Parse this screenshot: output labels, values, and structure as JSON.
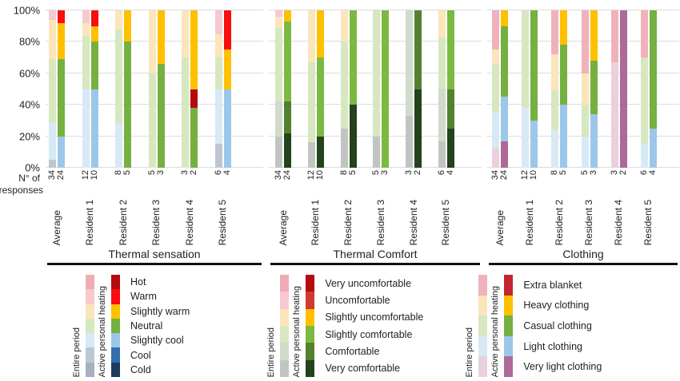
{
  "y_axis": {
    "ticks": [
      "100%",
      "80%",
      "60%",
      "40%",
      "20%",
      "0%"
    ],
    "label_line1": "N° of",
    "label_line2": "responses"
  },
  "legend_header": {
    "entire": "Entire  period",
    "active": "Active personal heating"
  },
  "chart_data": [
    {
      "type": "bar",
      "stacked": true,
      "unit": "%",
      "ylim": [
        0,
        100
      ],
      "title": "Thermal sensation",
      "categories": [
        "Average",
        "Resident 1",
        "Resident 2",
        "Resident 3",
        "Resident 4",
        "Resident 5"
      ],
      "legend": [
        "Hot",
        "Warm",
        "Slightly warm",
        "Neutral",
        "Slightly cool",
        "Cool",
        "Cold"
      ],
      "colors": {
        "entire": {
          "Hot": "#F0ACB4",
          "Warm": "#F6C9CE",
          "Slightly warm": "#FBE5BB",
          "Neutral": "#D7E7C0",
          "Slightly cool": "#D8E9F6",
          "Cool": "#BDC7D2",
          "Cold": "#A7B0BD"
        },
        "active": {
          "Hot": "#B40A10",
          "Warm": "#F90D0D",
          "Slightly warm": "#FFC000",
          "Neutral": "#76B041",
          "Slightly cool": "#9CC7E9",
          "Cool": "#336FAC",
          "Cold": "#1E3A60"
        }
      },
      "bars": [
        {
          "category": "Average",
          "n_entire": "34",
          "n_active": "24",
          "entire": [
            [
              "Cool",
              5
            ],
            [
              "Slightly cool",
              24
            ],
            [
              "Neutral",
              40
            ],
            [
              "Slightly warm",
              25
            ],
            [
              "Warm",
              6
            ]
          ],
          "active": [
            [
              "Slightly cool",
              20
            ],
            [
              "Neutral",
              49
            ],
            [
              "Slightly warm",
              23
            ],
            [
              "Warm",
              8
            ]
          ]
        },
        {
          "category": "Resident 1",
          "n_entire": "12",
          "n_active": "10",
          "entire": [
            [
              "Slightly cool",
              50
            ],
            [
              "Neutral",
              34
            ],
            [
              "Slightly warm",
              8
            ],
            [
              "Warm",
              8
            ]
          ],
          "active": [
            [
              "Slightly cool",
              50
            ],
            [
              "Neutral",
              30
            ],
            [
              "Slightly warm",
              10
            ],
            [
              "Warm",
              10
            ]
          ]
        },
        {
          "category": "Resident 2",
          "n_entire": "8",
          "n_active": "5",
          "entire": [
            [
              "Slightly cool",
              28
            ],
            [
              "Neutral",
              60
            ],
            [
              "Slightly warm",
              12
            ]
          ],
          "active": [
            [
              "Neutral",
              80
            ],
            [
              "Slightly warm",
              20
            ]
          ]
        },
        {
          "category": "Resident 3",
          "n_entire": "5",
          "n_active": "3",
          "entire": [
            [
              "Neutral",
              60
            ],
            [
              "Slightly warm",
              40
            ]
          ],
          "active": [
            [
              "Neutral",
              66
            ],
            [
              "Slightly warm",
              34
            ]
          ]
        },
        {
          "category": "Resident 4",
          "n_entire": "3",
          "n_active": "2",
          "entire": [
            [
              "Neutral",
              70
            ],
            [
              "Slightly warm",
              30
            ]
          ],
          "active": [
            [
              "Neutral",
              38
            ],
            [
              "Hot",
              12
            ],
            [
              "Slightly warm",
              50
            ]
          ]
        },
        {
          "category": "Resident 5",
          "n_entire": "6",
          "n_active": "4",
          "entire": [
            [
              "Cool",
              15
            ],
            [
              "Slightly cool",
              35
            ],
            [
              "Neutral",
              20
            ],
            [
              "Slightly warm",
              15
            ],
            [
              "Warm",
              15
            ]
          ],
          "active": [
            [
              "Slightly cool",
              50
            ],
            [
              "Slightly warm",
              25
            ],
            [
              "Warm",
              25
            ]
          ]
        }
      ]
    },
    {
      "type": "bar",
      "stacked": true,
      "unit": "%",
      "ylim": [
        0,
        100
      ],
      "title": "Thermal Comfort",
      "categories": [
        "Average",
        "Resident 1",
        "Resident 2",
        "Resident 3",
        "Resident 4",
        "Resident 5"
      ],
      "legend": [
        "Very uncomfortable",
        "Uncomfortable",
        "Slightly uncomfortable",
        "Slightly comfortable",
        "Comfortable",
        "Very comfortable"
      ],
      "colors": {
        "entire": {
          "Very uncomfortable": "#F0ACB4",
          "Uncomfortable": "#F6C9CE",
          "Slightly uncomfortable": "#FBE5BB",
          "Slightly comfortable": "#D7E7C0",
          "Comfortable": "#D0DBCB",
          "Very comfortable": "#C1C5C2"
        },
        "active": {
          "Very uncomfortable": "#B40A10",
          "Uncomfortable": "#D03A30",
          "Slightly uncomfortable": "#FFC000",
          "Slightly comfortable": "#7CB942",
          "Comfortable": "#53812F",
          "Very comfortable": "#24421C"
        }
      },
      "bars": [
        {
          "category": "Average",
          "n_entire": "34",
          "n_active": "24",
          "entire": [
            [
              "Very comfortable",
              20
            ],
            [
              "Comfortable",
              22
            ],
            [
              "Slightly comfortable",
              47
            ],
            [
              "Slightly uncomfortable",
              7
            ],
            [
              "Uncomfortable",
              4
            ]
          ],
          "active": [
            [
              "Very comfortable",
              22
            ],
            [
              "Comfortable",
              20
            ],
            [
              "Slightly comfortable",
              51
            ],
            [
              "Slightly uncomfortable",
              7
            ]
          ]
        },
        {
          "category": "Resident 1",
          "n_entire": "12",
          "n_active": "10",
          "entire": [
            [
              "Very comfortable",
              16
            ],
            [
              "Slightly comfortable",
              51
            ],
            [
              "Slightly uncomfortable",
              33
            ]
          ],
          "active": [
            [
              "Very comfortable",
              20
            ],
            [
              "Slightly comfortable",
              50
            ],
            [
              "Slightly uncomfortable",
              30
            ]
          ]
        },
        {
          "category": "Resident 2",
          "n_entire": "8",
          "n_active": "5",
          "entire": [
            [
              "Very comfortable",
              25
            ],
            [
              "Slightly comfortable",
              55
            ],
            [
              "Slightly uncomfortable",
              20
            ]
          ],
          "active": [
            [
              "Very comfortable",
              40
            ],
            [
              "Slightly comfortable",
              60
            ]
          ]
        },
        {
          "category": "Resident 3",
          "n_entire": "5",
          "n_active": "3",
          "entire": [
            [
              "Very comfortable",
              20
            ],
            [
              "Slightly comfortable",
              80
            ]
          ],
          "active": [
            [
              "Slightly comfortable",
              100
            ]
          ]
        },
        {
          "category": "Resident 4",
          "n_entire": "3",
          "n_active": "2",
          "entire": [
            [
              "Very comfortable",
              33
            ],
            [
              "Comfortable",
              67
            ]
          ],
          "active": [
            [
              "Very comfortable",
              50
            ],
            [
              "Comfortable",
              50
            ]
          ]
        },
        {
          "category": "Resident 5",
          "n_entire": "6",
          "n_active": "4",
          "entire": [
            [
              "Very comfortable",
              17
            ],
            [
              "Comfortable",
              33
            ],
            [
              "Slightly comfortable",
              33
            ],
            [
              "Slightly uncomfortable",
              17
            ]
          ],
          "active": [
            [
              "Very comfortable",
              25
            ],
            [
              "Comfortable",
              25
            ],
            [
              "Slightly comfortable",
              50
            ]
          ]
        }
      ]
    },
    {
      "type": "bar",
      "stacked": true,
      "unit": "%",
      "ylim": [
        0,
        100
      ],
      "title": "Clothing",
      "categories": [
        "Average",
        "Resident 1",
        "Resident 2",
        "Resident 3",
        "Resident 4",
        "Resident 5"
      ],
      "legend": [
        "Extra blanket",
        "Heavy clothing",
        "Casual clothing",
        "Light clothing",
        "Very light clothing"
      ],
      "colors": {
        "entire": {
          "Extra blanket": "#F0B2BA",
          "Heavy clothing": "#FBE5BB",
          "Casual clothing": "#D7E7C0",
          "Light clothing": "#D8E9F6",
          "Very light clothing": "#EAD0DC"
        },
        "active": {
          "Extra blanket": "#C32531",
          "Heavy clothing": "#FFC000",
          "Casual clothing": "#76B041",
          "Light clothing": "#9CC7E9",
          "Very light clothing": "#AD6A97"
        }
      },
      "bars": [
        {
          "category": "Average",
          "n_entire": "34",
          "n_active": "24",
          "entire": [
            [
              "Very light clothing",
              12
            ],
            [
              "Light clothing",
              23
            ],
            [
              "Casual clothing",
              31
            ],
            [
              "Heavy clothing",
              9
            ],
            [
              "Extra blanket",
              25
            ]
          ],
          "active": [
            [
              "Very light clothing",
              17
            ],
            [
              "Light clothing",
              28
            ],
            [
              "Casual clothing",
              45
            ],
            [
              "Heavy clothing",
              10
            ]
          ]
        },
        {
          "category": "Resident 1",
          "n_entire": "12",
          "n_active": "10",
          "entire": [
            [
              "Light clothing",
              38
            ],
            [
              "Casual clothing",
              62
            ]
          ],
          "active": [
            [
              "Light clothing",
              30
            ],
            [
              "Casual clothing",
              70
            ]
          ]
        },
        {
          "category": "Resident 2",
          "n_entire": "8",
          "n_active": "5",
          "entire": [
            [
              "Light clothing",
              24
            ],
            [
              "Casual clothing",
              25
            ],
            [
              "Heavy clothing",
              23
            ],
            [
              "Extra blanket",
              28
            ]
          ],
          "active": [
            [
              "Light clothing",
              40
            ],
            [
              "Casual clothing",
              38
            ],
            [
              "Heavy clothing",
              22
            ]
          ]
        },
        {
          "category": "Resident 3",
          "n_entire": "5",
          "n_active": "3",
          "entire": [
            [
              "Light clothing",
              20
            ],
            [
              "Casual clothing",
              20
            ],
            [
              "Heavy clothing",
              20
            ],
            [
              "Extra blanket",
              40
            ]
          ],
          "active": [
            [
              "Light clothing",
              34
            ],
            [
              "Casual clothing",
              34
            ],
            [
              "Heavy clothing",
              32
            ]
          ]
        },
        {
          "category": "Resident 4",
          "n_entire": "3",
          "n_active": "2",
          "entire": [
            [
              "Very light clothing",
              67
            ],
            [
              "Extra blanket",
              33
            ]
          ],
          "active": [
            [
              "Very light clothing",
              100
            ]
          ]
        },
        {
          "category": "Resident 5",
          "n_entire": "6",
          "n_active": "4",
          "entire": [
            [
              "Light clothing",
              15
            ],
            [
              "Casual clothing",
              55
            ],
            [
              "Extra blanket",
              30
            ]
          ],
          "active": [
            [
              "Light clothing",
              25
            ],
            [
              "Casual clothing",
              75
            ]
          ]
        }
      ]
    }
  ]
}
